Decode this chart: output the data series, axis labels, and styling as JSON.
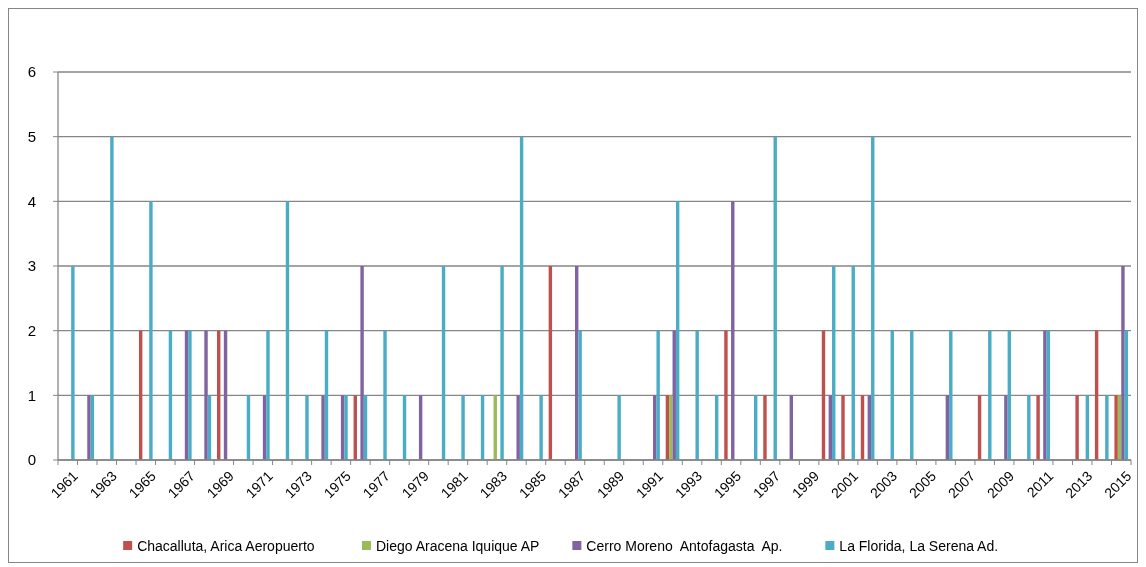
{
  "chart_data": {
    "type": "bar",
    "categories": [
      "1961",
      null,
      "1963",
      null,
      "1965",
      null,
      "1967",
      null,
      "1969",
      null,
      "1971",
      null,
      "1973",
      null,
      "1975",
      null,
      "1977",
      null,
      "1979",
      null,
      "1981",
      null,
      "1983",
      null,
      "1985",
      null,
      "1987",
      null,
      "1989",
      null,
      "1991",
      null,
      "1993",
      null,
      "1995",
      null,
      "1997",
      null,
      "1999",
      null,
      "2001",
      null,
      "2003",
      null,
      "2005",
      null,
      "2007",
      null,
      "2009",
      null,
      "2011",
      null,
      "2013",
      null,
      "2015"
    ],
    "series": [
      {
        "name": "Chacalluta, Arica Aeropuerto",
        "color": "#c0504d",
        "values": [
          0,
          0,
          0,
          0,
          2,
          0,
          0,
          0,
          2,
          0,
          0,
          0,
          0,
          0,
          0,
          1,
          0,
          0,
          0,
          0,
          0,
          0,
          0,
          0,
          0,
          3,
          0,
          0,
          0,
          0,
          0,
          1,
          0,
          0,
          2,
          0,
          1,
          0,
          0,
          2,
          1,
          1,
          0,
          0,
          0,
          0,
          0,
          1,
          0,
          0,
          1,
          0,
          1,
          2,
          1
        ]
      },
      {
        "name": "Diego Aracena Iquique AP",
        "color": "#9bbb59",
        "values": [
          0,
          0,
          0,
          0,
          0,
          0,
          0,
          0,
          0,
          0,
          0,
          0,
          0,
          0,
          0,
          0,
          0,
          0,
          0,
          0,
          0,
          0,
          1,
          0,
          0,
          0,
          0,
          0,
          0,
          0,
          0,
          1,
          0,
          0,
          0,
          0,
          0,
          0,
          0,
          0,
          0,
          0,
          0,
          0,
          0,
          0,
          0,
          0,
          0,
          0,
          0,
          0,
          0,
          0,
          1
        ]
      },
      {
        "name": "Cerro Moreno  Antofagasta  Ap.",
        "color": "#8064a2",
        "values": [
          0,
          1,
          0,
          0,
          0,
          0,
          2,
          2,
          2,
          0,
          1,
          0,
          0,
          1,
          1,
          3,
          0,
          0,
          1,
          0,
          0,
          0,
          0,
          1,
          0,
          0,
          3,
          0,
          0,
          0,
          1,
          2,
          0,
          0,
          4,
          0,
          0,
          1,
          0,
          1,
          0,
          1,
          0,
          0,
          0,
          1,
          0,
          0,
          1,
          0,
          2,
          0,
          0,
          0,
          3
        ]
      },
      {
        "name": "La Florida, La Serena Ad.",
        "color": "#4bacc6",
        "values": [
          3,
          1,
          5,
          0,
          4,
          2,
          2,
          1,
          0,
          1,
          2,
          4,
          1,
          2,
          1,
          1,
          2,
          1,
          0,
          3,
          1,
          1,
          3,
          5,
          1,
          0,
          2,
          0,
          1,
          0,
          2,
          4,
          2,
          1,
          0,
          1,
          5,
          0,
          0,
          3,
          3,
          5,
          2,
          2,
          0,
          2,
          0,
          2,
          2,
          1,
          2,
          0,
          1,
          1,
          2
        ]
      }
    ],
    "ylim": [
      0,
      6
    ],
    "yticks": [
      0,
      1,
      2,
      3,
      4,
      5,
      6
    ],
    "grid": "y",
    "legend": "bottom"
  }
}
